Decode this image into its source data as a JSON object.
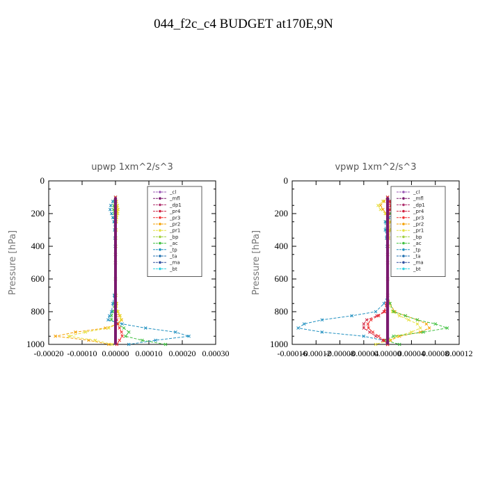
{
  "figure_title": "044_f2c_c4  BUDGET at170E,9N",
  "legend_entries": [
    {
      "name": "_cl",
      "color": "#9b59b6"
    },
    {
      "name": "_mfl",
      "color": "#7b1a6e"
    },
    {
      "name": "_dp1",
      "color": "#b0306e"
    },
    {
      "name": "_pr4",
      "color": "#d02040"
    },
    {
      "name": "_pr3",
      "color": "#f03030"
    },
    {
      "name": "_pr2",
      "color": "#f5a000"
    },
    {
      "name": "_pr1",
      "color": "#e6e040"
    },
    {
      "name": "_bp",
      "color": "#a0d040"
    },
    {
      "name": "_ac",
      "color": "#40c040"
    },
    {
      "name": "_tp",
      "color": "#2090c0"
    },
    {
      "name": "_ta",
      "color": "#2070b0"
    },
    {
      "name": "_ma",
      "color": "#3050a0"
    },
    {
      "name": "_bt",
      "color": "#30d0e0"
    }
  ],
  "chart_data": [
    {
      "type": "line",
      "title": "upwp   1xm^2/s^3",
      "ylabel": "Pressure [hPa]",
      "xlabel": "",
      "ylim": [
        1000,
        0
      ],
      "xlim": [
        -0.0002,
        0.0003
      ],
      "x_ticks": [
        "-0.00020",
        "-0.00010",
        "0.00000",
        "0.00010",
        "0.00020",
        "0.00030"
      ],
      "y_ticks": [
        "0",
        "200",
        "400",
        "600",
        "800",
        "1000"
      ],
      "pressure": [
        100,
        125,
        150,
        175,
        200,
        225,
        250,
        300,
        350,
        400,
        450,
        500,
        600,
        700,
        750,
        800,
        825,
        850,
        875,
        900,
        925,
        950,
        975,
        1000
      ],
      "series": [
        {
          "name": "_pr2",
          "color": "#f5a000",
          "values": [
            0,
            3e-06,
            5e-06,
            6e-06,
            4e-06,
            3e-06,
            2e-06,
            2e-06,
            1e-06,
            1e-06,
            0,
            0,
            0,
            0,
            2e-06,
            5e-06,
            1.2e-05,
            1.8e-05,
            8e-06,
            -3e-05,
            -0.00012,
            -0.00018,
            -8e-05,
            -2e-05
          ]
        },
        {
          "name": "_pr1",
          "color": "#e6e040",
          "values": [
            0,
            2e-06,
            6e-06,
            8e-06,
            7e-06,
            4e-06,
            3e-06,
            2e-06,
            1e-06,
            0,
            0,
            0,
            0,
            2e-06,
            4e-06,
            8e-06,
            1.4e-05,
            1.6e-05,
            6e-06,
            -2e-05,
            -9e-05,
            -0.00014,
            -6e-05,
            -1e-05
          ]
        },
        {
          "name": "_ac",
          "color": "#40c040",
          "values": [
            0,
            -3e-06,
            -5e-06,
            -6e-06,
            -4e-06,
            -3e-06,
            -2e-06,
            -1e-06,
            0,
            0,
            0,
            0,
            0,
            -2e-06,
            -4e-06,
            -8e-06,
            -1.2e-05,
            -1.2e-05,
            5e-06,
            2.5e-05,
            4e-05,
            3e-05,
            8e-05,
            0.00015
          ]
        },
        {
          "name": "_tp",
          "color": "#2090c0",
          "values": [
            0,
            -8e-06,
            -1.4e-05,
            -1.6e-05,
            -1.2e-05,
            -8e-06,
            -5e-06,
            -3e-06,
            -2e-06,
            -1e-06,
            0,
            0,
            0,
            -4e-06,
            -8e-06,
            -1.2e-05,
            -1.8e-05,
            -2.2e-05,
            2e-05,
            9e-05,
            0.00018,
            0.00022,
            0.00012,
            4e-05
          ]
        },
        {
          "name": "_pr3",
          "color": "#f03030",
          "values": [
            0,
            0,
            0,
            0,
            0,
            0,
            0,
            0,
            0,
            0,
            0,
            0,
            0,
            0,
            0,
            0,
            2e-06,
            4e-06,
            6e-06,
            1.2e-05,
            1.8e-05,
            2e-05,
            1.2e-05,
            4e-06
          ]
        },
        {
          "name": "_cl",
          "color": "#9b59b6",
          "values": [
            0,
            0,
            0,
            0,
            0,
            0,
            0,
            0,
            0,
            0,
            0,
            0,
            0,
            0,
            0,
            0,
            0,
            0,
            0,
            0,
            0,
            0,
            0,
            0
          ]
        },
        {
          "name": "_mfl",
          "color": "#7b1a6e",
          "values": [
            0,
            0,
            0,
            0,
            0,
            0,
            0,
            0,
            0,
            0,
            0,
            0,
            0,
            0,
            0,
            0,
            0,
            0,
            0,
            0,
            0,
            0,
            0,
            0
          ]
        }
      ]
    },
    {
      "type": "line",
      "title": "vpwp   1xm^2/s^3",
      "ylabel": "Pressure [hPa]",
      "xlabel": "",
      "ylim": [
        1000,
        0
      ],
      "xlim": [
        -0.00016,
        0.00012
      ],
      "x_ticks": [
        "-0.00016",
        "-0.00012",
        "-0.00008",
        "-0.00004",
        "0.00000",
        "0.00004",
        "0.00008",
        "0.00012"
      ],
      "y_ticks": [
        "0",
        "200",
        "400",
        "600",
        "800",
        "1000"
      ],
      "pressure": [
        100,
        125,
        150,
        175,
        200,
        225,
        250,
        300,
        350,
        400,
        450,
        500,
        600,
        700,
        750,
        800,
        825,
        850,
        875,
        900,
        925,
        950,
        975,
        1000
      ],
      "series": [
        {
          "name": "_pr2",
          "color": "#f5a000",
          "values": [
            0,
            -6e-06,
            -1.2e-05,
            -8e-06,
            -2e-06,
            2e-06,
            4e-06,
            3e-06,
            2e-06,
            1e-06,
            0,
            0,
            0,
            0,
            4e-06,
            1.2e-05,
            3e-05,
            5e-05,
            6.5e-05,
            7e-05,
            5.5e-05,
            2e-05,
            5e-06,
            0
          ]
        },
        {
          "name": "_pr1",
          "color": "#e6e040",
          "values": [
            0,
            -8e-06,
            -1.6e-05,
            -1.2e-05,
            -4e-06,
            1e-06,
            3e-06,
            4e-06,
            2e-06,
            1e-06,
            0,
            0,
            0,
            0,
            2e-06,
            8e-06,
            2e-05,
            3.5e-05,
            5e-05,
            5.5e-05,
            4e-05,
            1.5e-05,
            3e-06,
            -2e-05
          ]
        },
        {
          "name": "_ac",
          "color": "#40c040",
          "values": [
            0,
            4e-06,
            8e-06,
            1e-05,
            4e-06,
            0,
            -2e-06,
            -2e-06,
            -1e-06,
            0,
            0,
            0,
            0,
            0,
            4e-06,
            1e-05,
            3e-05,
            5e-05,
            8e-05,
            0.0001,
            6e-05,
            1e-05,
            -5e-06,
            2e-05
          ]
        },
        {
          "name": "_tp",
          "color": "#2090c0",
          "values": [
            0,
            6e-06,
            1.2e-05,
            1.6e-05,
            1e-05,
            2e-06,
            -4e-06,
            -4e-06,
            -2e-06,
            -1e-06,
            0,
            0,
            0,
            0,
            -6e-06,
            -2e-05,
            -6e-05,
            -0.00011,
            -0.00014,
            -0.00015,
            -0.00011,
            -4e-05,
            -8e-06,
            0
          ]
        },
        {
          "name": "_pr4",
          "color": "#d02040",
          "values": [
            0,
            4e-06,
            6e-06,
            4e-06,
            2e-06,
            0,
            0,
            0,
            0,
            0,
            0,
            0,
            0,
            0,
            -2e-06,
            -6e-06,
            -1.8e-05,
            -3.5e-05,
            -4e-05,
            -4e-05,
            -3e-05,
            -2e-05,
            -8e-06,
            0
          ]
        },
        {
          "name": "_pr3",
          "color": "#f03030",
          "values": [
            0,
            3e-06,
            5e-06,
            3e-06,
            1e-06,
            0,
            0,
            0,
            0,
            0,
            0,
            0,
            0,
            0,
            -2e-06,
            -5e-06,
            -1.5e-05,
            -2.8e-05,
            -3.3e-05,
            -3.2e-05,
            -2.5e-05,
            -1.5e-05,
            -6e-06,
            0
          ]
        },
        {
          "name": "_cl",
          "color": "#9b59b6",
          "values": [
            0,
            0,
            0,
            0,
            0,
            0,
            0,
            0,
            0,
            0,
            0,
            0,
            0,
            0,
            0,
            0,
            0,
            0,
            0,
            0,
            0,
            0,
            0,
            0
          ]
        },
        {
          "name": "_mfl",
          "color": "#7b1a6e",
          "values": [
            0,
            0,
            0,
            0,
            0,
            0,
            0,
            0,
            0,
            0,
            0,
            0,
            0,
            0,
            0,
            0,
            0,
            0,
            0,
            0,
            0,
            0,
            0,
            0
          ]
        }
      ]
    }
  ]
}
